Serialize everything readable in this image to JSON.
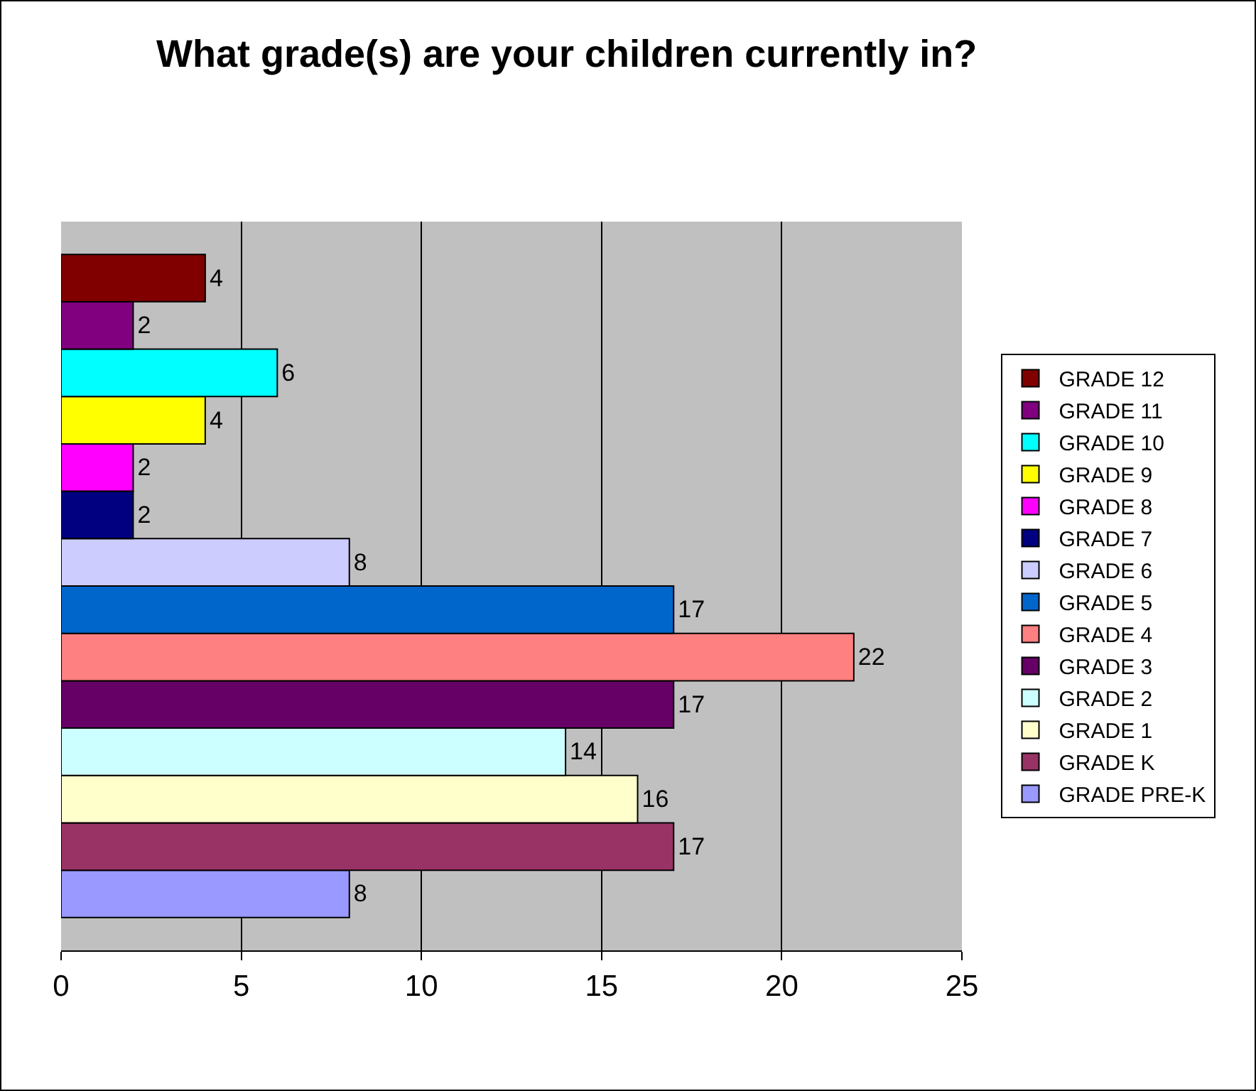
{
  "chart_data": {
    "type": "bar",
    "orientation": "horizontal",
    "title": "What grade(s) are your children currently in?",
    "categories": [
      null
    ],
    "series": [
      {
        "name": "GRADE 12",
        "color": "#800000",
        "values": [
          4
        ]
      },
      {
        "name": "GRADE 11",
        "color": "#800080",
        "values": [
          2
        ]
      },
      {
        "name": "GRADE 10",
        "color": "#00ffff",
        "values": [
          6
        ]
      },
      {
        "name": "GRADE 9",
        "color": "#ffff00",
        "values": [
          4
        ]
      },
      {
        "name": "GRADE 8",
        "color": "#ff00ff",
        "values": [
          2
        ]
      },
      {
        "name": "GRADE 7",
        "color": "#000080",
        "values": [
          2
        ]
      },
      {
        "name": "GRADE 6",
        "color": "#ccccff",
        "values": [
          8
        ]
      },
      {
        "name": "GRADE 5",
        "color": "#0066cc",
        "values": [
          17
        ]
      },
      {
        "name": "GRADE 4",
        "color": "#ff8080",
        "values": [
          22
        ]
      },
      {
        "name": "GRADE 3",
        "color": "#660066",
        "values": [
          17
        ]
      },
      {
        "name": "GRADE 2",
        "color": "#ccffff",
        "values": [
          14
        ]
      },
      {
        "name": "GRADE 1",
        "color": "#ffffcc",
        "values": [
          16
        ]
      },
      {
        "name": "GRADE K",
        "color": "#993366",
        "values": [
          17
        ]
      },
      {
        "name": "GRADE PRE-K",
        "color": "#9999ff",
        "values": [
          8
        ]
      }
    ],
    "xlim": [
      0,
      25
    ],
    "xticks": [
      0,
      5,
      10,
      15,
      20,
      25
    ],
    "grid": "x",
    "legend": "right",
    "data_labels": true
  }
}
